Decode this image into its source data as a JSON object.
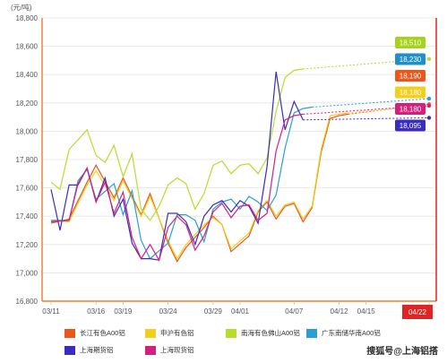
{
  "chart_data": {
    "type": "line",
    "unit_label": "(元/吨)",
    "x": [
      "03/11",
      "03/12",
      "03/13",
      "03/14",
      "03/15",
      "03/16",
      "03/17",
      "03/18",
      "03/19",
      "03/20",
      "03/21",
      "03/22",
      "03/23",
      "03/24",
      "03/25",
      "03/26",
      "03/27",
      "03/28",
      "03/29",
      "03/30",
      "03/31",
      "04/01",
      "04/02",
      "04/03",
      "04/04",
      "04/05",
      "04/06",
      "04/07",
      "04/08",
      "04/09",
      "04/10",
      "04/11",
      "04/12",
      "04/13",
      "04/14",
      "04/15",
      "04/16",
      "04/17",
      "04/18",
      "04/19",
      "04/20",
      "04/21",
      "04/22"
    ],
    "x_ticks": [
      "03/11",
      "03/16",
      "03/19",
      "03/24",
      "03/29",
      "04/01",
      "04/07",
      "04/12",
      "04/15",
      "04/22"
    ],
    "current_label": "04/22",
    "y_ticks": [
      16800,
      17000,
      17200,
      17400,
      17600,
      17800,
      18000,
      18200,
      18400,
      18600,
      18800
    ],
    "ylim": [
      16800,
      18800
    ],
    "series": [
      {
        "name": "长江有色A00铝",
        "color": "#e8571e",
        "values": [
          17350,
          null,
          17380,
          null,
          17640,
          17760,
          null,
          17530,
          17670,
          null,
          17410,
          17560,
          null,
          17210,
          17080,
          17180,
          null,
          17320,
          17400,
          17340,
          17150,
          null,
          17260,
          17430,
          17500,
          17380,
          17470,
          17490,
          17360,
          17460,
          17850,
          18090,
          18110,
          18120,
          null,
          null,
          null,
          null,
          null,
          null,
          null,
          null,
          18190
        ]
      },
      {
        "name": "申沪有色铝",
        "color": "#f2cf1b",
        "values": [
          17370,
          null,
          17360,
          null,
          17620,
          17720,
          null,
          17510,
          17650,
          null,
          17400,
          17540,
          null,
          17230,
          17100,
          17200,
          null,
          17340,
          17390,
          17340,
          17170,
          null,
          17280,
          17440,
          17510,
          17400,
          17480,
          17500,
          17380,
          17470,
          17870,
          18110,
          18120,
          18130,
          null,
          null,
          null,
          null,
          null,
          null,
          null,
          null,
          18180
        ]
      },
      {
        "name": "南海有色佛山A00铝",
        "color": "#b7dc2b",
        "values": [
          17640,
          17590,
          17870,
          null,
          18010,
          17830,
          17780,
          17900,
          17680,
          17840,
          17450,
          17370,
          17470,
          17620,
          17670,
          17630,
          17450,
          17560,
          17760,
          17790,
          17700,
          17760,
          17770,
          17700,
          17810,
          18140,
          18380,
          18430,
          18440,
          null,
          null,
          null,
          null,
          null,
          null,
          null,
          null,
          null,
          null,
          null,
          null,
          null,
          18510
        ]
      },
      {
        "name": "广东南储华南A00铝",
        "color": "#2a9fd4",
        "values": [
          17370,
          null,
          17370,
          17650,
          17730,
          17520,
          null,
          17630,
          17410,
          17580,
          17230,
          17100,
          null,
          17210,
          17410,
          17410,
          17370,
          17220,
          17450,
          17500,
          17520,
          17450,
          17540,
          17500,
          17440,
          17550,
          17880,
          18130,
          18160,
          18170,
          null,
          null,
          null,
          null,
          null,
          null,
          null,
          null,
          null,
          null,
          null,
          null,
          18230
        ]
      },
      {
        "name": "上海期货铝",
        "color": "#3a2cc0",
        "values": [
          17590,
          17300,
          17620,
          17620,
          17740,
          17500,
          17670,
          17400,
          17520,
          17210,
          17100,
          17100,
          17090,
          17420,
          17420,
          17360,
          17200,
          17400,
          17480,
          17510,
          17430,
          17510,
          17470,
          17350,
          17750,
          18420,
          18010,
          18210,
          18080,
          null,
          null,
          null,
          null,
          null,
          null,
          null,
          null,
          null,
          null,
          null,
          null,
          null,
          18095
        ]
      },
      {
        "name": "上海现货铝",
        "color": "#d4207d",
        "values": [
          17360,
          null,
          17370,
          17630,
          17740,
          17500,
          17640,
          17420,
          17570,
          17250,
          17100,
          17200,
          17090,
          17320,
          17400,
          17340,
          17160,
          17260,
          17430,
          17490,
          17390,
          17470,
          17480,
          17370,
          17420,
          17860,
          18080,
          18110,
          18120,
          null,
          null,
          null,
          null,
          null,
          null,
          null,
          null,
          null,
          null,
          null,
          null,
          null,
          18180
        ]
      }
    ],
    "end_labels": [
      {
        "text": "18,510",
        "color": "#a5d21a"
      },
      {
        "text": "18,230",
        "color": "#1e8fc7"
      },
      {
        "text": "18,190",
        "color": "#e8571e"
      },
      {
        "text": "18,180",
        "color": "#f2cf1b"
      },
      {
        "text": "18,180",
        "color": "#d4207d"
      },
      {
        "text": "18,095",
        "color": "#3a2cc0"
      }
    ],
    "grid": true,
    "legend_position": "bottom"
  },
  "watermark": "搜狐号@上海铝搭",
  "accent_red": "#e02424",
  "accent_orange": "#f07b2c"
}
